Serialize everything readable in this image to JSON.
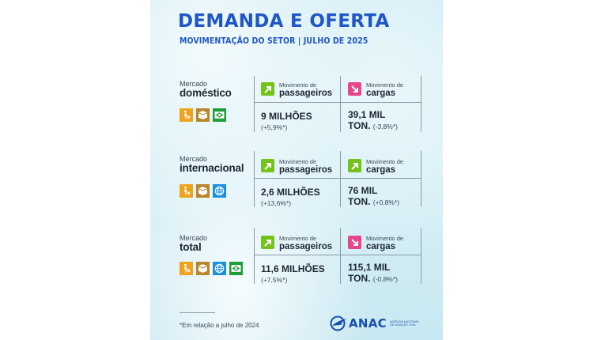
{
  "title": "DEMANDA E OFERTA",
  "subtitle": "MOVIMENTAÇÃO DO SETOR | JULHO DE 2025",
  "colors": {
    "brand_blue": "#1f57c8",
    "up_green": "#74c31b",
    "down_pink": "#e8458b",
    "orange": "#f0a21c",
    "brown": "#b8862c",
    "flag_green": "#1f9d3a",
    "globe_blue": "#1c8fe0"
  },
  "sections": [
    {
      "market_small": "Mercado",
      "market_big": "doméstico",
      "icons": [
        "person-luggage-icon",
        "cargo-boxes-icon",
        "brazil-flag-icon"
      ],
      "passengers": {
        "label_small": "Movimento de",
        "label_big": "passageiros",
        "trend": "up",
        "value": "9 MILHÕES",
        "change": "(+5,9%*)"
      },
      "cargo": {
        "label_small": "Movimento de",
        "label_big": "cargas",
        "trend": "down",
        "value_line1": "39,1 MIL",
        "value_line2": "TON.",
        "change": "(-3,8%*)"
      }
    },
    {
      "market_small": "Mercado",
      "market_big": "internacional",
      "icons": [
        "person-luggage-icon",
        "cargo-boxes-icon",
        "globe-icon"
      ],
      "passengers": {
        "label_small": "Movimento de",
        "label_big": "passageiros",
        "trend": "up",
        "value": "2,6 MILHÕES",
        "change": "(+13,6%*)"
      },
      "cargo": {
        "label_small": "Movimento de",
        "label_big": "cargas",
        "trend": "up",
        "value_line1": "76 MIL",
        "value_line2": "TON.",
        "change": "(+0,8%*)"
      }
    },
    {
      "market_small": "Mercado",
      "market_big": "total",
      "icons": [
        "person-luggage-icon",
        "cargo-boxes-icon",
        "globe-icon",
        "brazil-flag-icon"
      ],
      "passengers": {
        "label_small": "Movimento de",
        "label_big": "passageiros",
        "trend": "up",
        "value": "11,6 MILHÕES",
        "change": "(+7,5%*)"
      },
      "cargo": {
        "label_small": "Movimento de",
        "label_big": "cargas",
        "trend": "down",
        "value_line1": "115,1 MIL",
        "value_line2": "TON.",
        "change": "(-0,8%*)"
      }
    }
  ],
  "footnote": "*Em relação a julho de 2024",
  "logo": {
    "name": "ANAC",
    "tagline_1": "AGÊNCIA NACIONAL",
    "tagline_2": "DE AVIAÇÃO CIVIL"
  }
}
